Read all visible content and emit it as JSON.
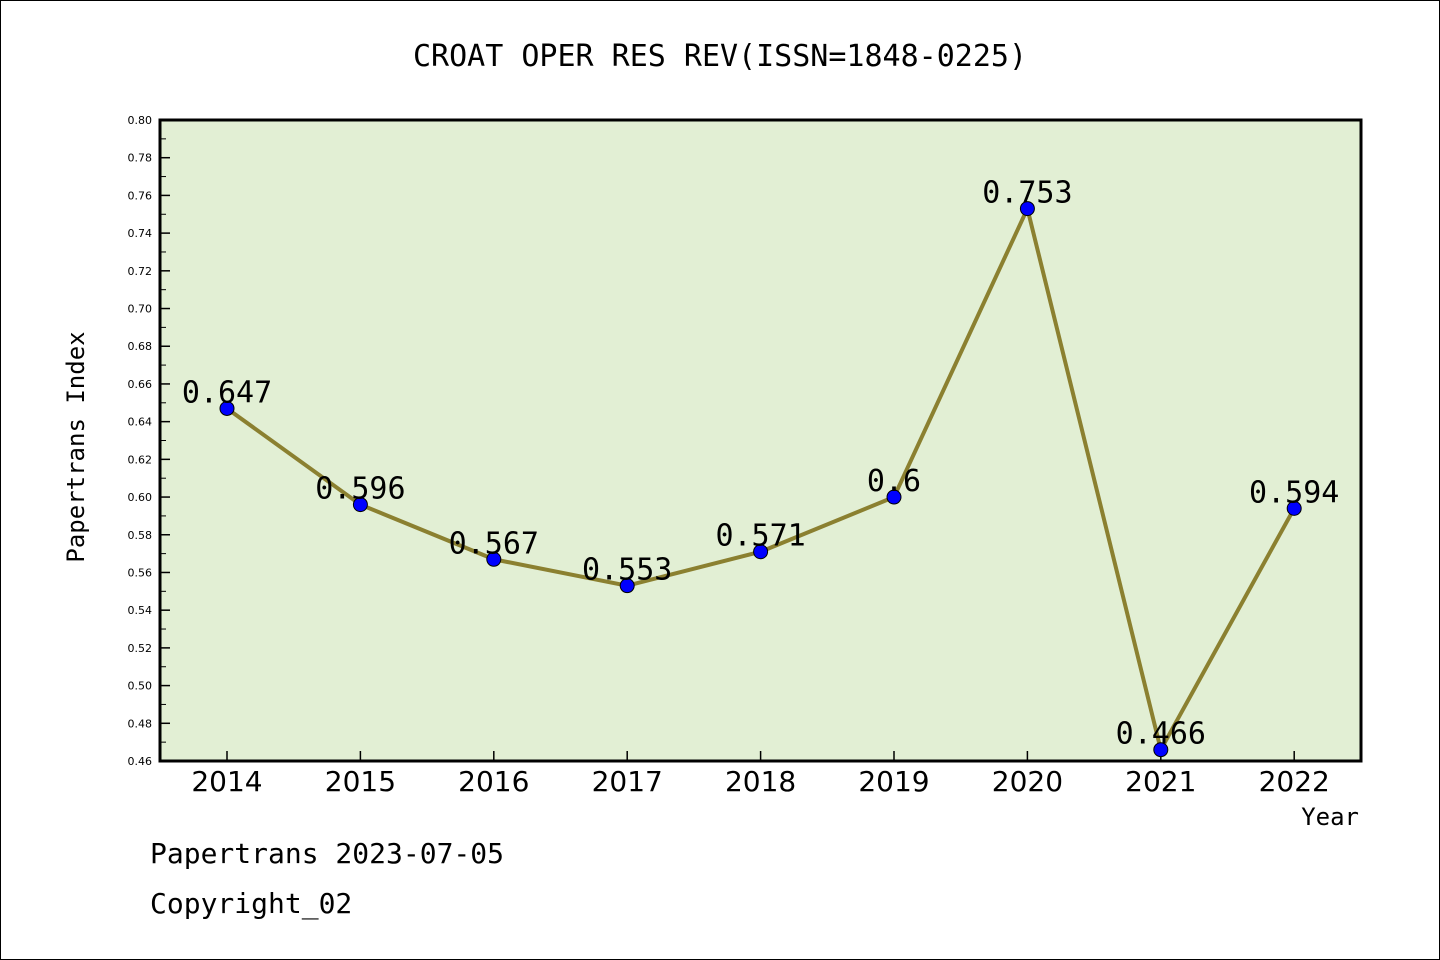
{
  "chart_data": {
    "type": "line",
    "title": "CROAT OPER RES REV(ISSN=1848-0225)",
    "xlabel": "Year",
    "ylabel": "Papertrans Index",
    "categories": [
      "2014",
      "2015",
      "2016",
      "2017",
      "2018",
      "2019",
      "2020",
      "2021",
      "2022"
    ],
    "values": [
      0.647,
      0.596,
      0.567,
      0.553,
      0.571,
      0.6,
      0.753,
      0.466,
      0.594
    ],
    "data_labels": [
      "0.647",
      "0.596",
      "0.567",
      "0.553",
      "0.571",
      "0.6",
      "0.753",
      "0.466",
      "0.594"
    ],
    "ylim": [
      0.46,
      0.8
    ],
    "yticks": [
      "0.46",
      "0.48",
      "0.50",
      "0.52",
      "0.54",
      "0.56",
      "0.58",
      "0.60",
      "0.62",
      "0.64",
      "0.66",
      "0.68",
      "0.70",
      "0.72",
      "0.74",
      "0.76",
      "0.78",
      "0.80"
    ],
    "grid": false,
    "colors": {
      "plot_background": "#e2efd4",
      "line": "#8b8030",
      "marker": "#0000ff"
    }
  },
  "footer": {
    "line1": "Papertrans 2023-07-05",
    "line2": "Copyright_02"
  }
}
